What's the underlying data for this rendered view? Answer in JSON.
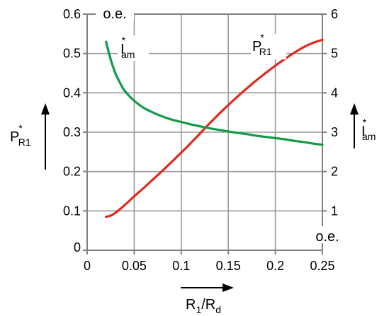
{
  "chart_data": {
    "type": "line",
    "x_label": {
      "main": "R",
      "sub1": "1",
      "slash": "/R",
      "sub2": "d"
    },
    "left_axis": {
      "label": {
        "main": "P",
        "star": "*",
        "sub": "R1"
      },
      "unit": "o.e.",
      "ylim": [
        0,
        0.6
      ],
      "ticks": [
        "0",
        "0.1",
        "0.2",
        "0.3",
        "0.4",
        "0.5",
        "0.6"
      ]
    },
    "right_axis": {
      "label": {
        "main": "I",
        "star": "*",
        "sub": "am"
      },
      "unit": "o.e.",
      "ylim": [
        0,
        6
      ],
      "ticks": [
        "1",
        "2",
        "3",
        "4",
        "5",
        "6"
      ]
    },
    "x_axis": {
      "xlim": [
        0,
        0.25
      ],
      "ticks": [
        "0",
        "0.05",
        "0.1",
        "0.15",
        "0.2",
        "0.25"
      ]
    },
    "grid": true,
    "series": [
      {
        "name": {
          "main": "P",
          "star": "*",
          "sub": "R1"
        },
        "axis": "left",
        "color": "#e02a1e",
        "x": [
          0.02,
          0.025,
          0.03,
          0.04,
          0.05,
          0.06,
          0.07,
          0.08,
          0.09,
          0.1,
          0.11,
          0.12,
          0.13,
          0.14,
          0.15,
          0.16,
          0.17,
          0.18,
          0.19,
          0.2,
          0.21,
          0.22,
          0.23,
          0.24,
          0.25
        ],
        "y": [
          0.085,
          0.088,
          0.095,
          0.115,
          0.137,
          0.158,
          0.18,
          0.202,
          0.225,
          0.248,
          0.272,
          0.297,
          0.322,
          0.346,
          0.369,
          0.391,
          0.412,
          0.432,
          0.451,
          0.469,
          0.486,
          0.502,
          0.516,
          0.527,
          0.535
        ]
      },
      {
        "name": {
          "main": "I",
          "star": "*",
          "sub": "am"
        },
        "axis": "right",
        "color": "#139a47",
        "x": [
          0.02,
          0.025,
          0.03,
          0.035,
          0.04,
          0.05,
          0.06,
          0.07,
          0.08,
          0.09,
          0.1,
          0.11,
          0.12,
          0.13,
          0.14,
          0.15,
          0.16,
          0.17,
          0.18,
          0.19,
          0.2,
          0.21,
          0.22,
          0.23,
          0.24,
          0.25
        ],
        "y": [
          5.3,
          4.85,
          4.5,
          4.25,
          4.05,
          3.8,
          3.62,
          3.5,
          3.4,
          3.32,
          3.26,
          3.2,
          3.15,
          3.1,
          3.06,
          3.02,
          2.98,
          2.95,
          2.91,
          2.88,
          2.85,
          2.82,
          2.78,
          2.75,
          2.71,
          2.68
        ]
      }
    ]
  }
}
